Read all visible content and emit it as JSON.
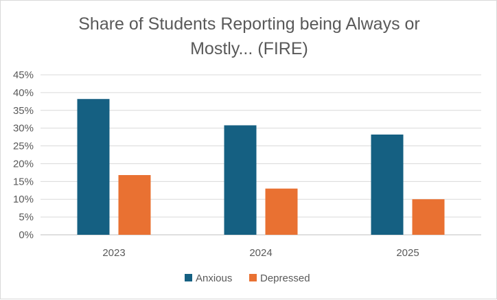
{
  "chart_data": {
    "type": "bar",
    "title_lines": [
      "Share of Students Reporting being Always or",
      "Mostly... (FIRE)"
    ],
    "categories": [
      "2023",
      "2024",
      "2025"
    ],
    "series": [
      {
        "name": "Anxious",
        "color": "#156082",
        "values": [
          38.2,
          30.8,
          28.2
        ]
      },
      {
        "name": "Depressed",
        "color": "#E97132",
        "values": [
          16.8,
          13.0,
          10.0
        ]
      }
    ],
    "ylim": [
      0,
      45
    ],
    "yticks": [
      0,
      5,
      10,
      15,
      20,
      25,
      30,
      35,
      40,
      45
    ],
    "ytick_labels": [
      "0%",
      "5%",
      "10%",
      "15%",
      "20%",
      "25%",
      "30%",
      "35%",
      "40%",
      "45%"
    ],
    "grid": true,
    "legend_position": "bottom"
  }
}
